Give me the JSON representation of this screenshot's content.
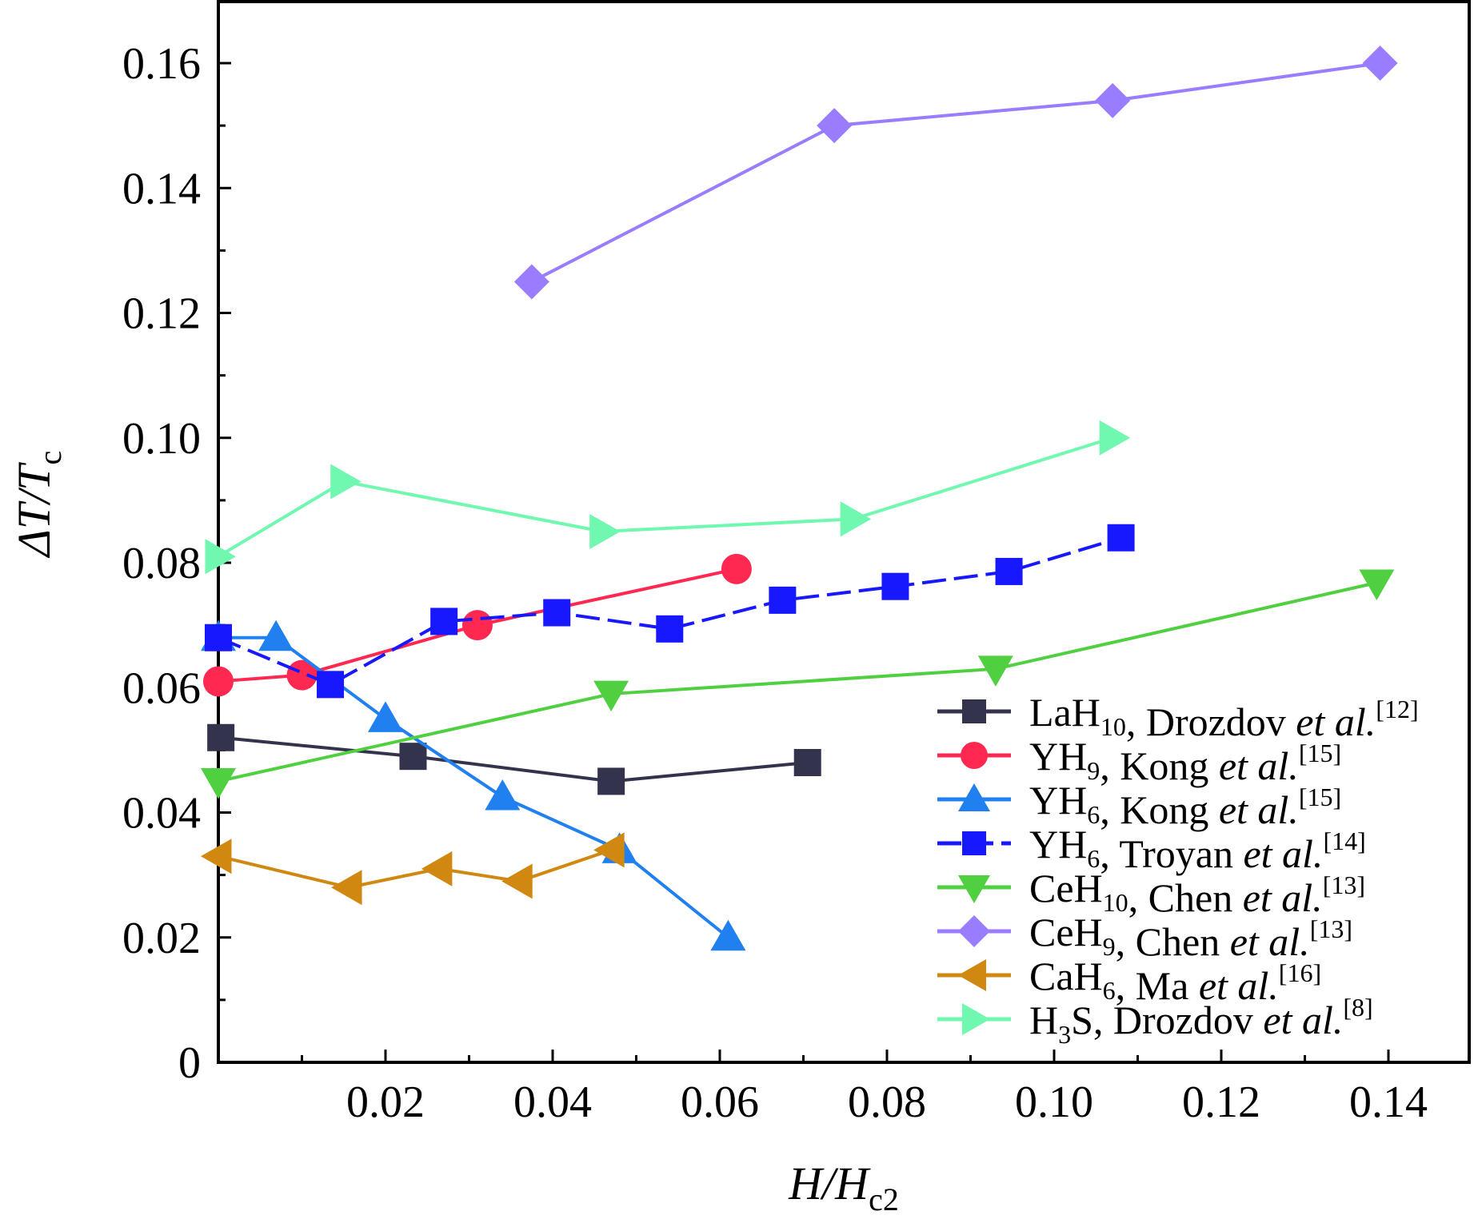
{
  "chart_data": {
    "type": "line",
    "title": "",
    "xlabel": {
      "main": "H/H",
      "sub": "c2"
    },
    "ylabel": {
      "main": "ΔT/T",
      "sub": "c"
    },
    "xlim": [
      0,
      0.148
    ],
    "ylim": [
      0,
      0.17
    ],
    "xticks": [
      0.02,
      0.04,
      0.06,
      0.08,
      0.1,
      0.12,
      0.14
    ],
    "xtick_labels": [
      "0.02",
      "0.04",
      "0.06",
      "0.08",
      "0.10",
      "0.12",
      "0.14"
    ],
    "yticks": [
      0,
      0.02,
      0.04,
      0.06,
      0.08,
      0.1,
      0.12,
      0.14,
      0.16
    ],
    "ytick_labels": [
      "0",
      "0.02",
      "0.04",
      "0.06",
      "0.08",
      "0.10",
      "0.12",
      "0.14",
      "0.16"
    ],
    "grid": false,
    "legend_placement": "bottom-right",
    "series": [
      {
        "pre": "LaH",
        "sub": "10",
        "post": "",
        "author": ", Drozdov ",
        "etal": "et al.",
        "ref": "[12]",
        "color": "#33334d",
        "marker": "square",
        "dash": false,
        "x": [
          0.0003,
          0.0233,
          0.047,
          0.0705
        ],
        "y": [
          0.052,
          0.049,
          0.045,
          0.048
        ]
      },
      {
        "pre": "YH",
        "sub": "9",
        "post": "",
        "author": ", Kong ",
        "etal": "et al.",
        "ref": "[15]",
        "color": "#ff2850",
        "marker": "circle",
        "dash": false,
        "x": [
          0,
          0.01,
          0.031,
          0.062
        ],
        "y": [
          0.061,
          0.062,
          0.07,
          0.079
        ]
      },
      {
        "pre": "YH",
        "sub": "6",
        "post": "",
        "author": ", Kong ",
        "etal": "et al.",
        "ref": "[15]",
        "color": "#2080f0",
        "marker": "triangle-up",
        "dash": false,
        "x": [
          0,
          0.0069,
          0.02,
          0.034,
          0.048,
          0.061
        ],
        "y": [
          0.068,
          0.068,
          0.055,
          0.0425,
          0.034,
          0.02
        ]
      },
      {
        "pre": "YH",
        "sub": "6",
        "post": "",
        "author": ", Troyan ",
        "etal": "et al.",
        "ref": "[14]",
        "color": "#1818ff",
        "marker": "square",
        "dash": true,
        "x": [
          0,
          0.0134,
          0.027,
          0.0405,
          0.054,
          0.0675,
          0.081,
          0.0946,
          0.108
        ],
        "y": [
          0.068,
          0.0605,
          0.0706,
          0.072,
          0.0694,
          0.074,
          0.0762,
          0.0786,
          0.084
        ]
      },
      {
        "pre": "CeH",
        "sub": "10",
        "post": "",
        "author": ", Chen ",
        "etal": "et al.",
        "ref": "[13]",
        "color": "#50d040",
        "marker": "triangle-down",
        "dash": false,
        "x": [
          0,
          0.047,
          0.093,
          0.1386
        ],
        "y": [
          0.045,
          0.059,
          0.063,
          0.0768
        ]
      },
      {
        "pre": "CeH",
        "sub": "9",
        "post": "",
        "author": ", Chen ",
        "etal": "et al.",
        "ref": "[13]",
        "color": "#9a7cff",
        "marker": "diamond",
        "dash": false,
        "x": [
          0.0375,
          0.0737,
          0.107,
          0.139
        ],
        "y": [
          0.125,
          0.15,
          0.154,
          0.16
        ]
      },
      {
        "pre": "CaH",
        "sub": "6",
        "post": "",
        "author": ", Ma ",
        "etal": "et al.",
        "ref": "[16]",
        "color": "#d08810",
        "marker": "triangle-left",
        "dash": false,
        "x": [
          0,
          0.0156,
          0.0264,
          0.036,
          0.047
        ],
        "y": [
          0.033,
          0.028,
          0.031,
          0.029,
          0.034
        ]
      },
      {
        "pre": "H",
        "sub": "3",
        "post": "S",
        "author": ", Drozdov ",
        "etal": "et al.",
        "ref": "[8]",
        "color": "#70f8b0",
        "marker": "triangle-right",
        "dash": false,
        "x": [
          0,
          0.015,
          0.046,
          0.076,
          0.107
        ],
        "y": [
          0.081,
          0.093,
          0.085,
          0.087,
          0.1
        ]
      }
    ]
  }
}
